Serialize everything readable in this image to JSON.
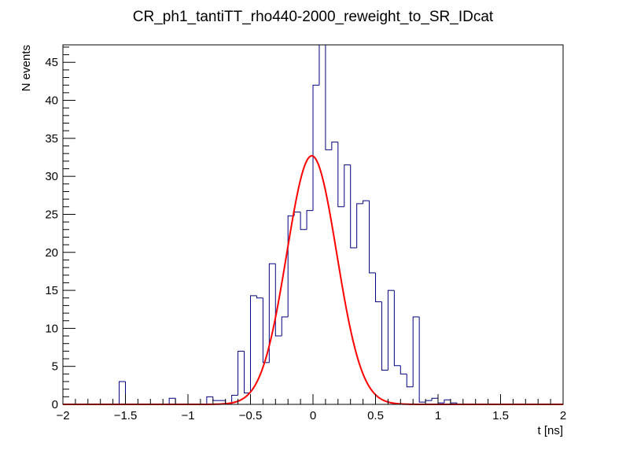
{
  "chart_data": {
    "type": "histogram",
    "title": "CR_ph1_tantiTT_rho440-2000_reweight_to_SR_IDcat",
    "xlabel": "t [ns]",
    "ylabel": "N events",
    "xlim": [
      -2,
      2
    ],
    "ylim": [
      0,
      47.3
    ],
    "x_ticks": [
      "−2",
      "−1.5",
      "−1",
      "−0.5",
      "0",
      "0.5",
      "1",
      "1.5",
      "2"
    ],
    "y_ticks": [
      "0",
      "5",
      "10",
      "15",
      "20",
      "25",
      "30",
      "35",
      "40",
      "45"
    ],
    "grid": false,
    "legend": "none",
    "colors": {
      "histogram": "#000080",
      "fit": "#ff0000",
      "frame": "#000000"
    },
    "series": [
      {
        "kind": "histogram",
        "bins": {
          "x": [
            -1.525,
            -1.475,
            -1.125,
            -0.825,
            -0.775,
            -0.725,
            -0.625,
            -0.575,
            -0.525,
            -0.475,
            -0.425,
            -0.375,
            -0.325,
            -0.275,
            -0.225,
            -0.175,
            -0.125,
            -0.075,
            -0.025,
            0.025,
            0.075,
            0.125,
            0.175,
            0.225,
            0.275,
            0.325,
            0.375,
            0.425,
            0.475,
            0.525,
            0.575,
            0.625,
            0.675,
            0.725,
            0.775,
            0.825,
            0.875,
            0.925,
            0.975,
            1.025,
            1.075,
            1.125
          ],
          "y": [
            3,
            0,
            0.8,
            1,
            0.5,
            0.5,
            1.2,
            7,
            1.5,
            14.3,
            14,
            5.5,
            18.5,
            9,
            11.5,
            24.8,
            25.3,
            23,
            25.5,
            42,
            47.3,
            33.5,
            34.5,
            26,
            31.5,
            20.6,
            26.4,
            26.8,
            17.3,
            13.5,
            4.5,
            15,
            5.1,
            4,
            2.3,
            11.5,
            0.3,
            0.5,
            0.8,
            0.2,
            0.6,
            0.2
          ]
        },
        "bin_width": 0.05
      },
      {
        "kind": "fit",
        "function": "gaussian",
        "amplitude": 32.7,
        "mean": -0.01,
        "sigma": 0.2
      }
    ]
  }
}
